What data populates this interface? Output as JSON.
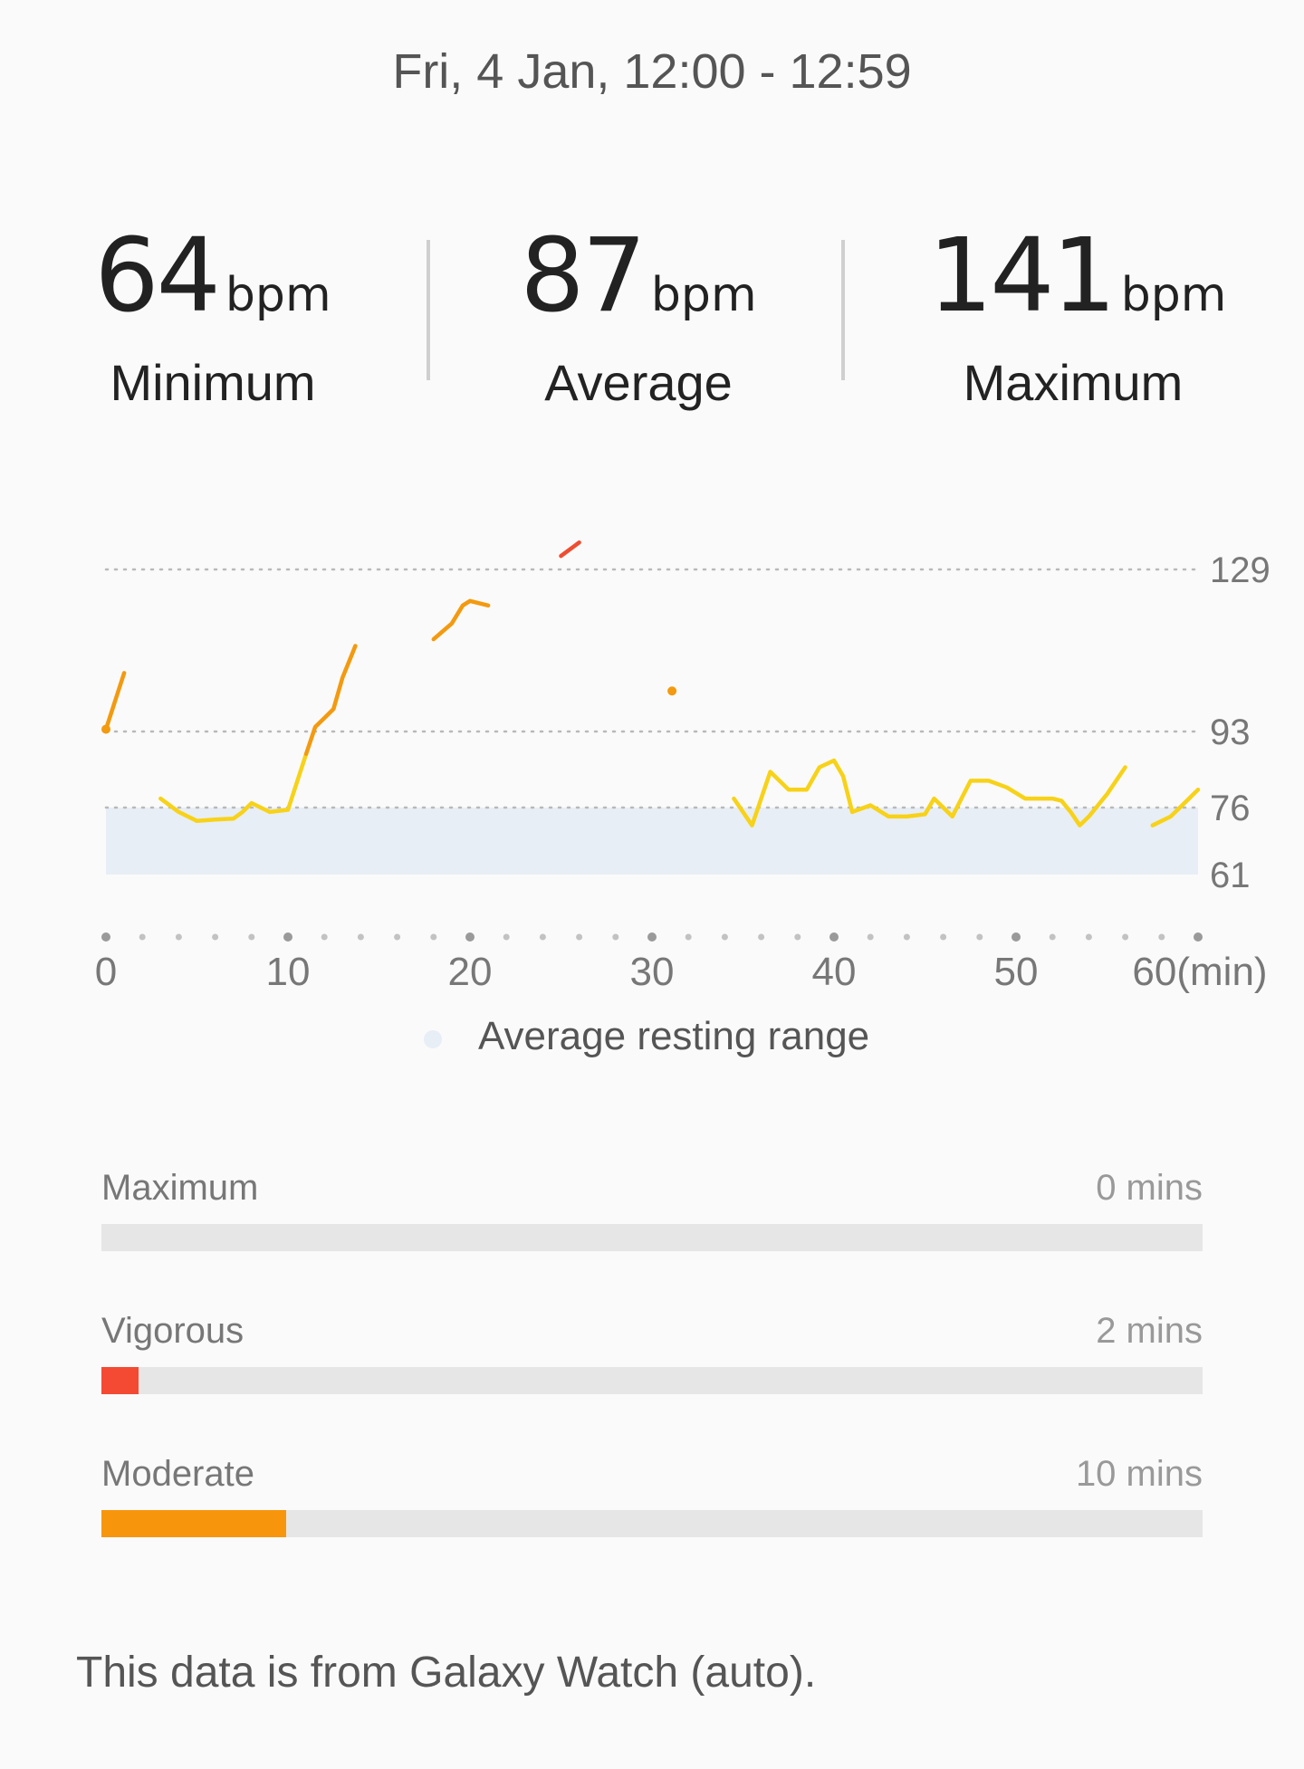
{
  "header": {
    "date_range": "Fri, 4 Jan, 12:00 - 12:59"
  },
  "stats": [
    {
      "value": "64",
      "unit": "bpm",
      "label": "Minimum"
    },
    {
      "value": "87",
      "unit": "bpm",
      "label": "Average"
    },
    {
      "value": "141",
      "unit": "bpm",
      "label": "Maximum"
    }
  ],
  "chart_data": {
    "type": "line",
    "x_unit": "(min)",
    "x_ticks": [
      0,
      10,
      20,
      30,
      40,
      50,
      60
    ],
    "x_tick_labels": [
      "0",
      "10",
      "20",
      "30",
      "40",
      "50",
      "60(min)"
    ],
    "xlim": [
      0,
      60
    ],
    "ylim": [
      61,
      129
    ],
    "y_ticks": [
      129,
      93,
      76,
      61
    ],
    "resting_range": [
      61,
      76
    ],
    "colors": {
      "low": "#f7d218",
      "mid": "#f39a10",
      "high": "#ef4d31",
      "resting": "#e8eef5"
    },
    "segments": [
      {
        "zone": "mid",
        "points": [
          [
            0,
            93.5
          ],
          [
            1,
            106
          ]
        ]
      },
      {
        "zone": "low",
        "points": [
          [
            3,
            78
          ],
          [
            4,
            75
          ],
          [
            5,
            73
          ],
          [
            6,
            73.3
          ],
          [
            7,
            73.5
          ],
          [
            7.5,
            75
          ],
          [
            8,
            77
          ],
          [
            8.5,
            76
          ],
          [
            9,
            75
          ],
          [
            10,
            75.5
          ],
          [
            11,
            88
          ]
        ]
      },
      {
        "zone": "mid",
        "points": [
          [
            11,
            88
          ],
          [
            11.5,
            94
          ],
          [
            12,
            96
          ],
          [
            12.5,
            98
          ],
          [
            13,
            105
          ],
          [
            13.5,
            110
          ],
          [
            13.7,
            112
          ]
        ]
      },
      {
        "zone": "mid",
        "points": [
          [
            18,
            113.5
          ],
          [
            19,
            117
          ],
          [
            19.6,
            121
          ],
          [
            20,
            122
          ],
          [
            21,
            121
          ]
        ]
      },
      {
        "zone": "high",
        "points": [
          [
            25,
            132
          ],
          [
            26,
            135
          ]
        ]
      },
      {
        "zone": "mid",
        "points": [
          [
            31.1,
            102
          ]
        ]
      },
      {
        "zone": "low",
        "points": [
          [
            34.5,
            78
          ],
          [
            35.5,
            72
          ],
          [
            36.5,
            84
          ],
          [
            37.5,
            80
          ],
          [
            38.5,
            80
          ],
          [
            39.2,
            85
          ],
          [
            40,
            86.5
          ],
          [
            40.5,
            83
          ],
          [
            41,
            75
          ],
          [
            42,
            76.5
          ],
          [
            43,
            74
          ],
          [
            44,
            74
          ],
          [
            45,
            74.5
          ],
          [
            45.5,
            78
          ],
          [
            46,
            76
          ],
          [
            46.5,
            74
          ],
          [
            47,
            78
          ],
          [
            47.5,
            82
          ],
          [
            48.5,
            82
          ],
          [
            49.5,
            80.5
          ],
          [
            50.5,
            78
          ],
          [
            52,
            78
          ],
          [
            52.5,
            77.5
          ],
          [
            53,
            75
          ],
          [
            53.5,
            72
          ],
          [
            54,
            74
          ],
          [
            55,
            79
          ],
          [
            55.5,
            82
          ],
          [
            56,
            85
          ]
        ]
      },
      {
        "zone": "low",
        "points": [
          [
            57.5,
            72
          ],
          [
            58.5,
            74
          ],
          [
            59,
            76
          ],
          [
            59.5,
            78
          ],
          [
            60,
            80
          ]
        ]
      }
    ]
  },
  "legend": {
    "label": "Average resting range"
  },
  "zones": [
    {
      "label": "Maximum",
      "value": "0 mins",
      "fill_fraction": 0,
      "color": "#ef4d31"
    },
    {
      "label": "Vigorous",
      "value": "2 mins",
      "fill_fraction": 0.034,
      "color": "#f44a33"
    },
    {
      "label": "Moderate",
      "value": "10 mins",
      "fill_fraction": 0.168,
      "color": "#f7960c"
    }
  ],
  "footer": {
    "note": "This data is from Galaxy Watch (auto)."
  }
}
